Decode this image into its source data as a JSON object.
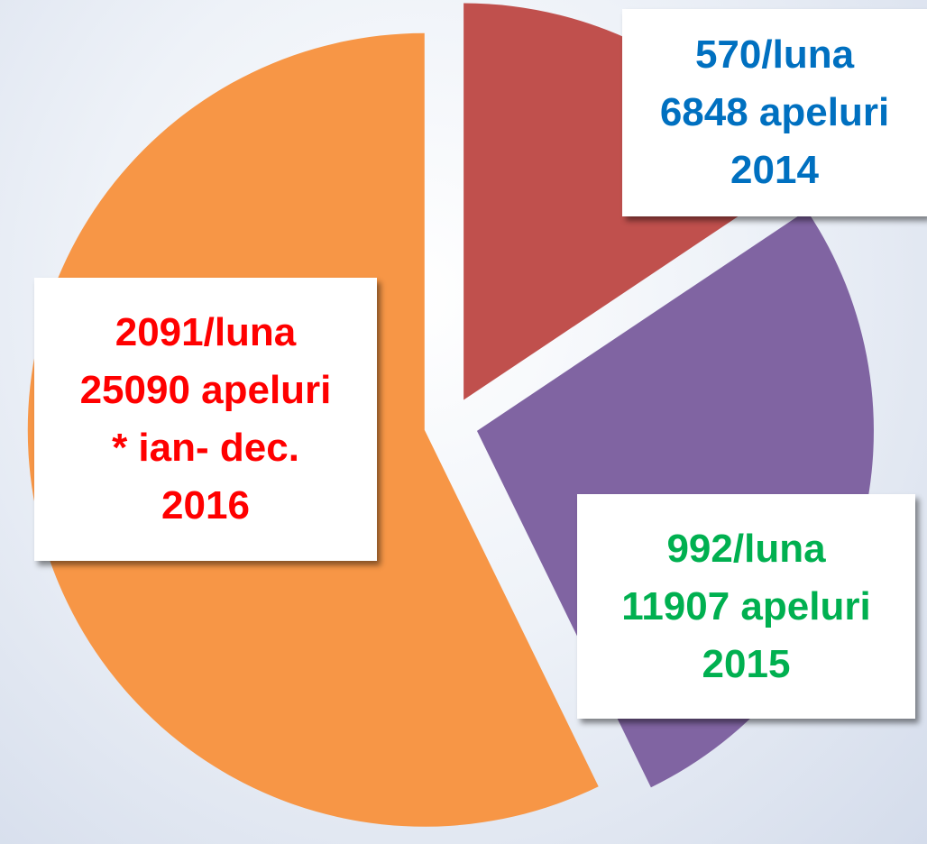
{
  "chart_data": {
    "type": "pie",
    "categories": [
      "2014",
      "2015",
      "2016"
    ],
    "values": [
      6848,
      11907,
      25090
    ],
    "value_labels": [
      "6848 apeluri",
      "11907 apeluri",
      "25090 apeluri"
    ],
    "monthly_labels": [
      "570/luna",
      "992/luna",
      "2091/luna"
    ],
    "category_notes": [
      null,
      null,
      "* ian- dec."
    ],
    "colors": [
      "#c0504d",
      "#8064a2",
      "#f79646"
    ],
    "label_colors": [
      "#0070c0",
      "#00b050",
      "#ff0000"
    ]
  }
}
